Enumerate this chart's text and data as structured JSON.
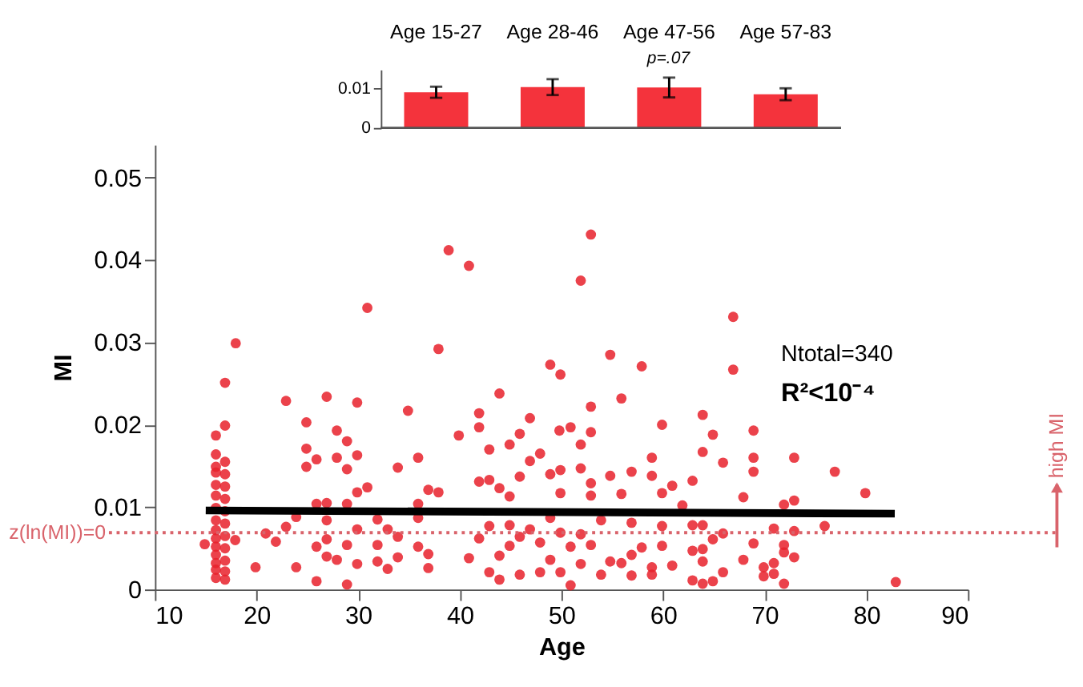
{
  "chart_data": [
    {
      "type": "scatter",
      "xlabel": "Age",
      "ylabel": "MI",
      "xlim": [
        10,
        90
      ],
      "ylim": [
        0,
        0.054
      ],
      "xticks": [
        10,
        20,
        30,
        40,
        50,
        60,
        70,
        80,
        90
      ],
      "yticks": [
        0,
        0.01,
        0.02,
        0.03,
        0.04,
        0.05
      ],
      "grid": false,
      "series": [
        {
          "type": "scatter",
          "color": "#e8212b",
          "marker": "circle",
          "x": [
            16.0,
            16.0,
            16.0,
            16.0,
            16.0,
            16.0,
            16.0,
            16.0,
            16.0,
            16.0,
            16.0,
            16.0,
            16.0,
            16.0,
            16.0,
            16.9,
            16.9,
            16.9,
            16.9,
            16.9,
            16.9,
            16.9,
            16.9,
            16.9,
            16.9,
            16.9,
            16.9,
            16.9,
            17.95,
            14.9,
            17.9,
            38.9,
            40.9,
            52.9,
            51.9,
            30.9,
            37.9,
            54.8,
            48.9,
            49.9,
            22.9,
            26.9,
            29.9,
            34.9,
            43.9,
            41.9,
            41.9,
            39.9,
            46.9,
            45.9,
            24.9,
            24.9,
            25.9,
            24.9,
            27.9,
            28.9,
            27.9,
            28.9,
            29.9,
            33.9,
            35.9,
            42.9,
            44.9,
            47.9,
            46.9,
            50.9,
            52.9,
            52.9,
            51.9,
            49.8,
            30.9,
            29.9,
            28.9,
            26.9,
            25.9,
            36.9,
            37.9,
            35.9,
            41.9,
            42.9,
            43.9,
            45.9,
            48.9,
            49.9,
            51.9,
            52.9,
            52.9,
            54.8,
            49.9,
            44.9,
            23.9,
            22.9,
            20.9,
            21.9,
            19.9,
            23.9,
            25.9,
            25.9,
            26.9,
            26.9,
            26.9,
            27.9,
            28.9,
            28.9,
            29.9,
            29.9,
            31.9,
            31.9,
            31.9,
            32.9,
            32.9,
            33.9,
            33.9,
            35.9,
            35.9,
            36.9,
            36.9,
            40.9,
            41.9,
            42.9,
            42.9,
            43.9,
            43.9,
            44.9,
            44.9,
            45.9,
            45.9,
            46.9,
            47.9,
            47.9,
            48.9,
            48.9,
            49.9,
            49.9,
            50.9,
            50.9,
            51.9,
            51.9,
            52.9,
            53.9,
            53.9,
            66.9,
            66.9,
            57.9,
            55.9,
            59.9,
            63.9,
            64.9,
            68.9,
            63.9,
            65.9,
            68.9,
            68.9,
            72.9,
            76.9,
            79.9,
            58.9,
            58.9,
            56.9,
            62.9,
            60.9,
            59.9,
            67.9,
            72.9,
            71.9,
            61.9,
            55.9,
            56.9,
            59.9,
            62.9,
            63.9,
            65.9,
            64.9,
            70.9,
            72.9,
            75.9,
            57.9,
            59.9,
            56.9,
            62.9,
            63.9,
            68.9,
            71.9,
            71.9,
            72.9,
            67.9,
            54.8,
            55.9,
            60.9,
            58.9,
            58.9,
            56.9,
            63.9,
            65.9,
            62.9,
            63.9,
            64.9,
            69.9,
            69.9,
            70.9,
            70.9,
            71.9,
            82.9
          ],
          "values": [
            0.0187,
            0.0164,
            0.0149,
            0.0142,
            0.0127,
            0.0114,
            0.0099,
            0.0084,
            0.0072,
            0.0062,
            0.0052,
            0.0042,
            0.0032,
            0.0024,
            0.0014,
            0.0251,
            0.0199,
            0.0155,
            0.014,
            0.0125,
            0.011,
            0.0095,
            0.008,
            0.0065,
            0.005,
            0.0035,
            0.0022,
            0.0012,
            0.0299,
            0.0055,
            0.006,
            0.0412,
            0.0393,
            0.0431,
            0.0375,
            0.0342,
            0.0292,
            0.0285,
            0.0273,
            0.0261,
            0.0229,
            0.0234,
            0.0227,
            0.0217,
            0.0238,
            0.0214,
            0.0197,
            0.0187,
            0.0208,
            0.0189,
            0.0203,
            0.0171,
            0.0158,
            0.0149,
            0.0193,
            0.018,
            0.016,
            0.0146,
            0.0163,
            0.0148,
            0.016,
            0.017,
            0.0176,
            0.0165,
            0.0156,
            0.0197,
            0.0222,
            0.0191,
            0.0176,
            0.0193,
            0.0124,
            0.0118,
            0.0104,
            0.0105,
            0.0104,
            0.0121,
            0.0118,
            0.0104,
            0.0131,
            0.0133,
            0.0123,
            0.0137,
            0.014,
            0.0145,
            0.0147,
            0.0129,
            0.0114,
            0.0138,
            0.0117,
            0.0113,
            0.0088,
            0.0076,
            0.0068,
            0.0058,
            0.0027,
            0.0027,
            0.001,
            0.0052,
            0.0084,
            0.0061,
            0.004,
            0.0036,
            0.0054,
            0.0006,
            0.0073,
            0.0031,
            0.0085,
            0.0054,
            0.0034,
            0.0073,
            0.0025,
            0.0064,
            0.0039,
            0.0087,
            0.0052,
            0.0043,
            0.0026,
            0.0038,
            0.0062,
            0.0077,
            0.0021,
            0.0041,
            0.0012,
            0.0078,
            0.0053,
            0.0064,
            0.0018,
            0.0073,
            0.0057,
            0.0021,
            0.0087,
            0.0036,
            0.0069,
            0.0021,
            0.0005,
            0.0052,
            0.0067,
            0.0031,
            0.0054,
            0.0018,
            0.0084,
            0.0331,
            0.0267,
            0.0271,
            0.0232,
            0.02,
            0.0212,
            0.0188,
            0.0193,
            0.0167,
            0.0154,
            0.016,
            0.0143,
            0.016,
            0.0143,
            0.0117,
            0.016,
            0.0138,
            0.0143,
            0.0132,
            0.0126,
            0.0117,
            0.0112,
            0.0108,
            0.0103,
            0.0102,
            0.0116,
            0.0081,
            0.0077,
            0.0078,
            0.0078,
            0.0068,
            0.0061,
            0.0074,
            0.0071,
            0.0077,
            0.0051,
            0.0053,
            0.0042,
            0.0047,
            0.0049,
            0.0056,
            0.0054,
            0.0045,
            0.0039,
            0.0036,
            0.0034,
            0.0032,
            0.0029,
            0.0027,
            0.0018,
            0.0017,
            0.0034,
            0.0021,
            0.0011,
            0.0007,
            0.001,
            0.0027,
            0.0016,
            0.0032,
            0.0019,
            0.0007,
            0.0009
          ]
        },
        {
          "type": "line",
          "color": "#000000",
          "x": [
            15,
            82.8
          ],
          "values": [
            0.0096,
            0.0092
          ]
        }
      ],
      "ref_lines": [
        {
          "axis": "y",
          "value": 0.0069,
          "label": "z(ln(MI))=0",
          "color": "#d9636b",
          "line_style": "dotted"
        }
      ],
      "annotations": [
        "Ntotal=340",
        "R²<10⁻⁴",
        "high MI"
      ]
    },
    {
      "type": "bar",
      "categories": [
        "Age 15-27",
        "Age 28-46",
        "Age 47-56",
        "Age 57-83"
      ],
      "values": [
        0.009,
        0.0103,
        0.0102,
        0.0085
      ],
      "errors": [
        0.0014,
        0.002,
        0.0025,
        0.0015
      ],
      "color": "#f4333c",
      "ylim": [
        0,
        0.0147
      ],
      "yticks": [
        0,
        0.01
      ],
      "grid": false,
      "annotations": [
        "p=.07"
      ]
    }
  ]
}
